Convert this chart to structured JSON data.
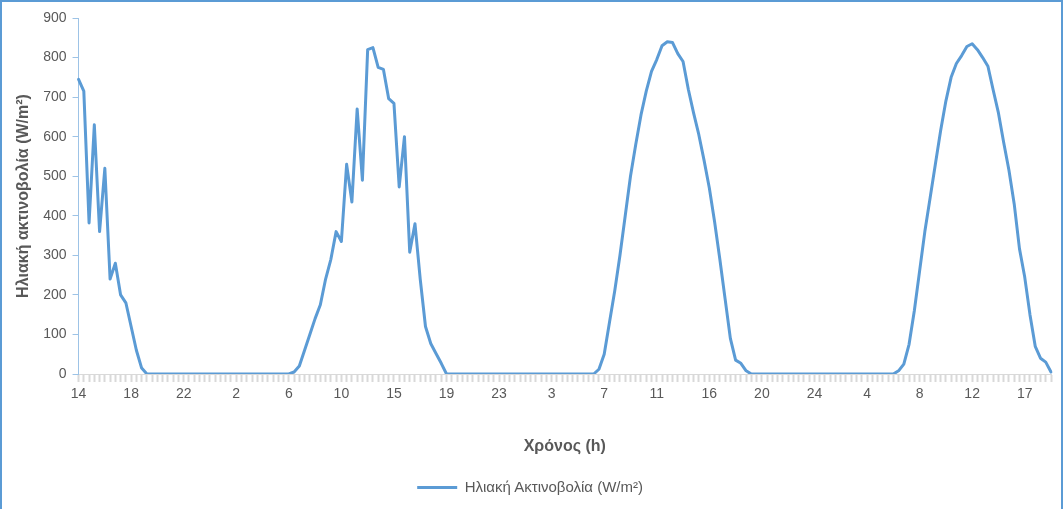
{
  "chart_data": {
    "type": "line",
    "xlabel": "Χρόνος (h)",
    "ylabel": "Ηλιακή ακτινοβολία (W/m²)",
    "categories": [
      "14",
      null,
      null,
      null,
      null,
      null,
      null,
      null,
      null,
      null,
      "18",
      null,
      null,
      null,
      null,
      null,
      null,
      null,
      null,
      null,
      "22",
      null,
      null,
      null,
      null,
      null,
      null,
      null,
      null,
      null,
      "2",
      null,
      null,
      null,
      null,
      null,
      null,
      null,
      null,
      null,
      "6",
      null,
      null,
      null,
      null,
      null,
      null,
      null,
      null,
      null,
      "10",
      null,
      null,
      null,
      null,
      null,
      null,
      null,
      null,
      null,
      "15",
      null,
      null,
      null,
      null,
      null,
      null,
      null,
      null,
      null,
      "19",
      null,
      null,
      null,
      null,
      null,
      null,
      null,
      null,
      null,
      "23",
      null,
      null,
      null,
      null,
      null,
      null,
      null,
      null,
      null,
      "3",
      null,
      null,
      null,
      null,
      null,
      null,
      null,
      null,
      null,
      "7",
      null,
      null,
      null,
      null,
      null,
      null,
      null,
      null,
      null,
      "11",
      null,
      null,
      null,
      null,
      null,
      null,
      null,
      null,
      null,
      "16",
      null,
      null,
      null,
      null,
      null,
      null,
      null,
      null,
      null,
      "20",
      null,
      null,
      null,
      null,
      null,
      null,
      null,
      null,
      null,
      "24",
      null,
      null,
      null,
      null,
      null,
      null,
      null,
      null,
      null,
      "4",
      null,
      null,
      null,
      null,
      null,
      null,
      null,
      null,
      null,
      "8",
      null,
      null,
      null,
      null,
      null,
      null,
      null,
      null,
      null,
      "12",
      null,
      null,
      null,
      null,
      null,
      null,
      null,
      null,
      null,
      "17",
      null,
      null,
      null,
      null,
      null
    ],
    "series": [
      {
        "name": "Ηλιακή Ακτινοβολία (W/m²)",
        "color": "#5b9bd5",
        "values": [
          745,
          715,
          382,
          630,
          360,
          520,
          240,
          280,
          200,
          180,
          120,
          60,
          15,
          0,
          0,
          0,
          0,
          0,
          0,
          0,
          0,
          0,
          0,
          0,
          0,
          0,
          0,
          0,
          0,
          0,
          0,
          0,
          0,
          0,
          0,
          0,
          0,
          0,
          0,
          0,
          0,
          5,
          20,
          60,
          100,
          140,
          175,
          240,
          290,
          360,
          335,
          530,
          435,
          670,
          490,
          820,
          825,
          775,
          770,
          696,
          684,
          473,
          600,
          308,
          380,
          240,
          120,
          77,
          52,
          27,
          0,
          0,
          0,
          0,
          0,
          0,
          0,
          0,
          0,
          0,
          0,
          0,
          0,
          0,
          0,
          0,
          0,
          0,
          0,
          0,
          0,
          0,
          0,
          0,
          0,
          0,
          0,
          0,
          0,
          12,
          50,
          130,
          210,
          300,
          400,
          500,
          580,
          655,
          715,
          765,
          795,
          830,
          840,
          838,
          810,
          790,
          720,
          660,
          605,
          540,
          470,
          385,
          290,
          190,
          90,
          35,
          27,
          8,
          0,
          0,
          0,
          0,
          0,
          0,
          0,
          0,
          0,
          0,
          0,
          0,
          0,
          0,
          0,
          0,
          0,
          0,
          0,
          0,
          0,
          0,
          0,
          0,
          0,
          0,
          0,
          0,
          8,
          25,
          75,
          160,
          260,
          360,
          445,
          530,
          615,
          690,
          750,
          785,
          805,
          828,
          835,
          820,
          800,
          778,
          718,
          660,
          585,
          515,
          430,
          317,
          245,
          150,
          70,
          40,
          30,
          5
        ]
      }
    ],
    "ylim": [
      0,
      900
    ],
    "yticks": [
      0,
      100,
      200,
      300,
      400,
      500,
      600,
      700,
      800,
      900
    ],
    "grid": false,
    "legend": "bottom",
    "marker": "none",
    "line_style": "solid"
  }
}
